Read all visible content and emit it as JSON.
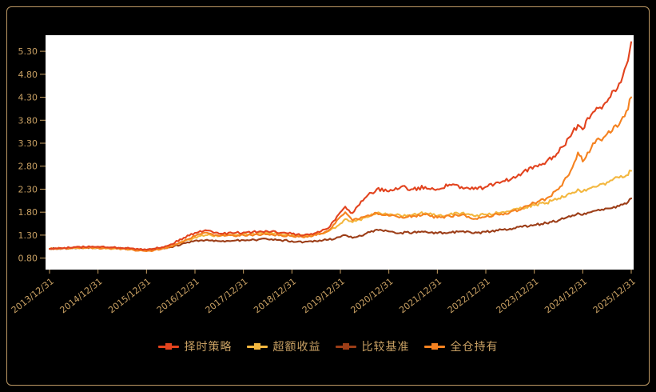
{
  "page": {
    "background_color": "#000000",
    "frame_border_color": "#bd9964",
    "axis_label_color": "#c8a063",
    "plot_background": "#ffffff"
  },
  "chart_data": {
    "type": "line",
    "title": "",
    "grid": false,
    "legend_position": "bottom",
    "xlim": [
      0,
      12
    ],
    "ylim": [
      0.55,
      5.65
    ],
    "x_tick_labels": [
      "2013/12/31",
      "2014/12/31",
      "2015/12/31",
      "2016/12/31",
      "2017/12/31",
      "2018/12/31",
      "2019/12/31",
      "2020/12/31",
      "2021/12/31",
      "2022/12/31",
      "2023/12/31",
      "2024/12/31",
      "2025/12/31"
    ],
    "y_tick_values": [
      0.8,
      1.3,
      1.8,
      2.3,
      2.8,
      3.3,
      3.8,
      4.3,
      4.8,
      5.3
    ],
    "y_tick_labels": [
      "0.80",
      "1.30",
      "1.80",
      "2.30",
      "2.80",
      "3.30",
      "3.80",
      "4.30",
      "4.80",
      "5.30"
    ],
    "x": [
      0,
      0.5,
      1,
      1.5,
      2,
      2.25,
      2.5,
      3,
      3.25,
      3.5,
      4,
      4.5,
      5,
      5.25,
      5.5,
      5.75,
      6,
      6.1,
      6.25,
      6.5,
      6.75,
      7,
      7.25,
      7.5,
      7.75,
      8,
      8.25,
      8.5,
      8.75,
      9,
      9.25,
      9.5,
      9.75,
      10,
      10.25,
      10.5,
      10.75,
      10.9,
      11,
      11.1,
      11.25,
      11.5,
      11.75,
      11.9,
      12
    ],
    "series": [
      {
        "key": "timing-strategy",
        "name": "择时策略",
        "color": "#e2431e",
        "values": [
          1.0,
          1.04,
          1.05,
          1.02,
          0.98,
          1.02,
          1.1,
          1.35,
          1.4,
          1.33,
          1.36,
          1.38,
          1.33,
          1.3,
          1.35,
          1.45,
          1.8,
          1.92,
          1.78,
          2.1,
          2.3,
          2.25,
          2.35,
          2.3,
          2.35,
          2.3,
          2.4,
          2.35,
          2.3,
          2.35,
          2.45,
          2.5,
          2.65,
          2.8,
          2.9,
          3.1,
          3.45,
          3.7,
          3.6,
          3.85,
          4.0,
          4.2,
          4.6,
          5.0,
          5.5
        ]
      },
      {
        "key": "excess-return",
        "name": "超额收益",
        "color": "#f3b73f",
        "values": [
          1.0,
          1.02,
          1.03,
          1.0,
          0.97,
          1.0,
          1.06,
          1.25,
          1.3,
          1.28,
          1.32,
          1.35,
          1.3,
          1.28,
          1.32,
          1.38,
          1.55,
          1.65,
          1.58,
          1.68,
          1.78,
          1.75,
          1.72,
          1.75,
          1.78,
          1.72,
          1.75,
          1.78,
          1.72,
          1.75,
          1.78,
          1.82,
          1.88,
          1.95,
          2.0,
          2.1,
          2.2,
          2.3,
          2.25,
          2.3,
          2.35,
          2.45,
          2.55,
          2.6,
          2.7
        ]
      },
      {
        "key": "benchmark",
        "name": "比较基准",
        "color": "#9c3d17",
        "values": [
          1.0,
          1.02,
          1.03,
          1.01,
          0.98,
          1.0,
          1.04,
          1.18,
          1.2,
          1.17,
          1.19,
          1.21,
          1.17,
          1.15,
          1.17,
          1.2,
          1.26,
          1.3,
          1.24,
          1.32,
          1.42,
          1.38,
          1.35,
          1.36,
          1.38,
          1.34,
          1.36,
          1.38,
          1.34,
          1.37,
          1.4,
          1.44,
          1.48,
          1.52,
          1.56,
          1.62,
          1.7,
          1.78,
          1.74,
          1.79,
          1.83,
          1.88,
          1.93,
          1.98,
          2.1
        ]
      },
      {
        "key": "full-position-hold",
        "name": "全仓持有",
        "color": "#f58220",
        "values": [
          1.0,
          1.03,
          1.02,
          1.0,
          0.95,
          0.98,
          1.05,
          1.28,
          1.35,
          1.28,
          1.3,
          1.32,
          1.28,
          1.25,
          1.3,
          1.4,
          1.7,
          1.8,
          1.62,
          1.7,
          1.78,
          1.72,
          1.7,
          1.72,
          1.75,
          1.68,
          1.72,
          1.74,
          1.65,
          1.7,
          1.75,
          1.8,
          1.88,
          2.0,
          2.1,
          2.3,
          2.7,
          3.1,
          2.9,
          3.1,
          3.3,
          3.5,
          3.7,
          4.0,
          4.3
        ]
      }
    ]
  }
}
